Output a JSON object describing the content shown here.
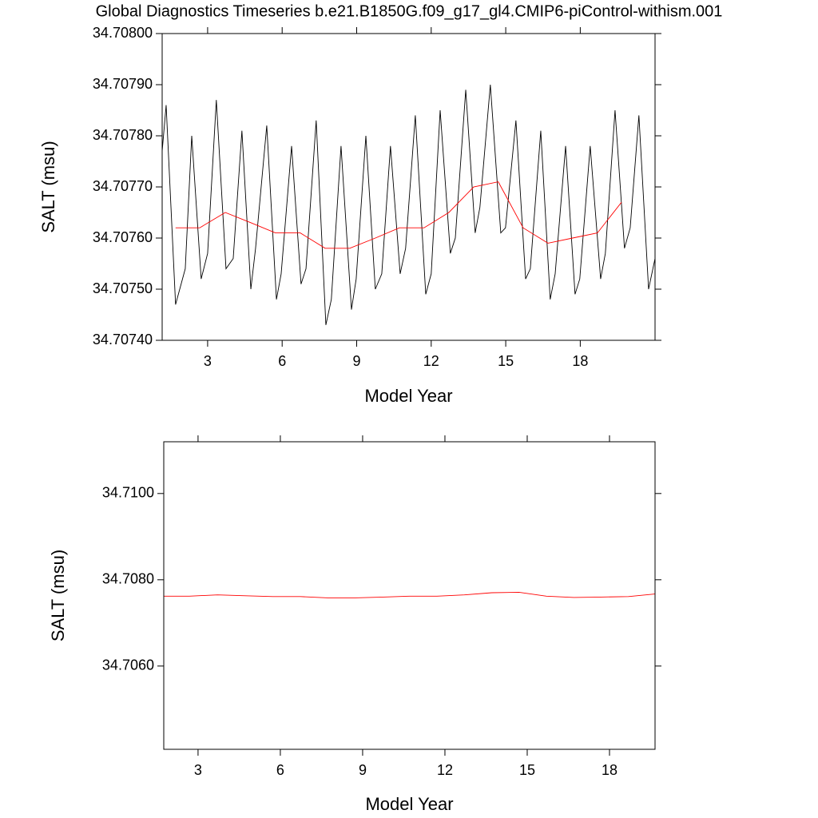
{
  "title": "Global Diagnostics Timeseries b.e21.B1850G.f09_g17_gl4.CMIP6-piControl-withism.001",
  "chart_data": [
    {
      "type": "line",
      "xlabel": "Model Year",
      "ylabel": "SALT (msu)",
      "xlim": [
        1.17,
        21.01
      ],
      "ylim": [
        34.7074,
        34.708
      ],
      "xticks": [
        3,
        6,
        9,
        12,
        15,
        18
      ],
      "yticks": [
        {
          "value": 34.7074,
          "label": "34.70740"
        },
        {
          "value": 34.7075,
          "label": "34.70750"
        },
        {
          "value": 34.7076,
          "label": "34.70760"
        },
        {
          "value": 34.7077,
          "label": "34.70770"
        },
        {
          "value": 34.7078,
          "label": "34.70780"
        },
        {
          "value": 34.7079,
          "label": "34.70790"
        },
        {
          "value": 34.708,
          "label": "34.70800"
        }
      ],
      "series": [
        {
          "color": "#000000",
          "x": [
            1.17,
            1.33,
            1.71,
            2.1,
            2.36,
            2.74,
            3.0,
            3.35,
            3.74,
            4.03,
            4.38,
            4.74,
            4.93,
            5.38,
            5.77,
            5.96,
            6.38,
            6.76,
            6.96,
            7.37,
            7.76,
            7.98,
            8.37,
            8.79,
            8.98,
            9.37,
            9.75,
            10.01,
            10.36,
            10.75,
            10.97,
            11.36,
            11.78,
            12.0,
            12.36,
            12.77,
            12.97,
            13.39,
            13.77,
            13.96,
            14.38,
            14.8,
            14.99,
            15.41,
            15.8,
            15.99,
            16.41,
            16.79,
            16.99,
            17.41,
            17.79,
            17.98,
            18.4,
            18.82,
            19.01,
            19.4,
            19.78,
            20.01,
            20.36,
            20.75,
            21.01
          ],
          "values": [
            34.70777,
            34.70786,
            34.70747,
            34.70754,
            34.7078,
            34.70752,
            34.70757,
            34.70787,
            34.70754,
            34.70756,
            34.70781,
            34.7075,
            34.70758,
            34.70782,
            34.70748,
            34.70753,
            34.70778,
            34.70751,
            34.70754,
            34.70783,
            34.70743,
            34.70748,
            34.70778,
            34.70746,
            34.70752,
            34.7078,
            34.7075,
            34.70753,
            34.70778,
            34.70753,
            34.70758,
            34.70784,
            34.70749,
            34.70753,
            34.70785,
            34.70757,
            34.7076,
            34.70789,
            34.70761,
            34.70766,
            34.7079,
            34.70761,
            34.70762,
            34.70783,
            34.70752,
            34.70754,
            34.70781,
            34.70748,
            34.70753,
            34.70778,
            34.70749,
            34.70752,
            34.70778,
            34.70752,
            34.70757,
            34.70785,
            34.70758,
            34.70762,
            34.70784,
            34.7075,
            34.70756
          ]
        },
        {
          "color": "#ff0000",
          "x": [
            1.71,
            2.68,
            3.71,
            4.74,
            5.73,
            6.73,
            7.73,
            8.72,
            9.75,
            10.72,
            11.71,
            12.71,
            13.71,
            14.7,
            15.7,
            16.7,
            17.69,
            18.69,
            19.66
          ],
          "values": [
            34.70762,
            34.70762,
            34.70765,
            34.70763,
            34.70761,
            34.70761,
            34.70758,
            34.70758,
            34.7076,
            34.70762,
            34.70762,
            34.70765,
            34.7077,
            34.70771,
            34.70762,
            34.70759,
            34.7076,
            34.70761,
            34.70767
          ]
        }
      ]
    },
    {
      "type": "line",
      "xlabel": "Model Year",
      "ylabel": "SALT (msu)",
      "xlim": [
        1.75,
        19.66
      ],
      "ylim": [
        34.70407,
        34.7112
      ],
      "xticks": [
        3,
        6,
        9,
        12,
        15,
        18
      ],
      "yticks": [
        {
          "value": 34.706,
          "label": "34.7060"
        },
        {
          "value": 34.708,
          "label": "34.7080"
        },
        {
          "value": 34.71,
          "label": "34.7100"
        }
      ],
      "series": [
        {
          "color": "#ff0000",
          "x": [
            1.71,
            2.68,
            3.71,
            4.74,
            5.73,
            6.73,
            7.73,
            8.72,
            9.75,
            10.72,
            11.71,
            12.71,
            13.71,
            14.7,
            15.7,
            16.7,
            17.69,
            18.69,
            19.66
          ],
          "values": [
            34.70762,
            34.70762,
            34.70765,
            34.70763,
            34.70761,
            34.70761,
            34.70758,
            34.70758,
            34.7076,
            34.70762,
            34.70762,
            34.70765,
            34.7077,
            34.70771,
            34.70762,
            34.70759,
            34.7076,
            34.70761,
            34.70767
          ]
        }
      ]
    }
  ]
}
